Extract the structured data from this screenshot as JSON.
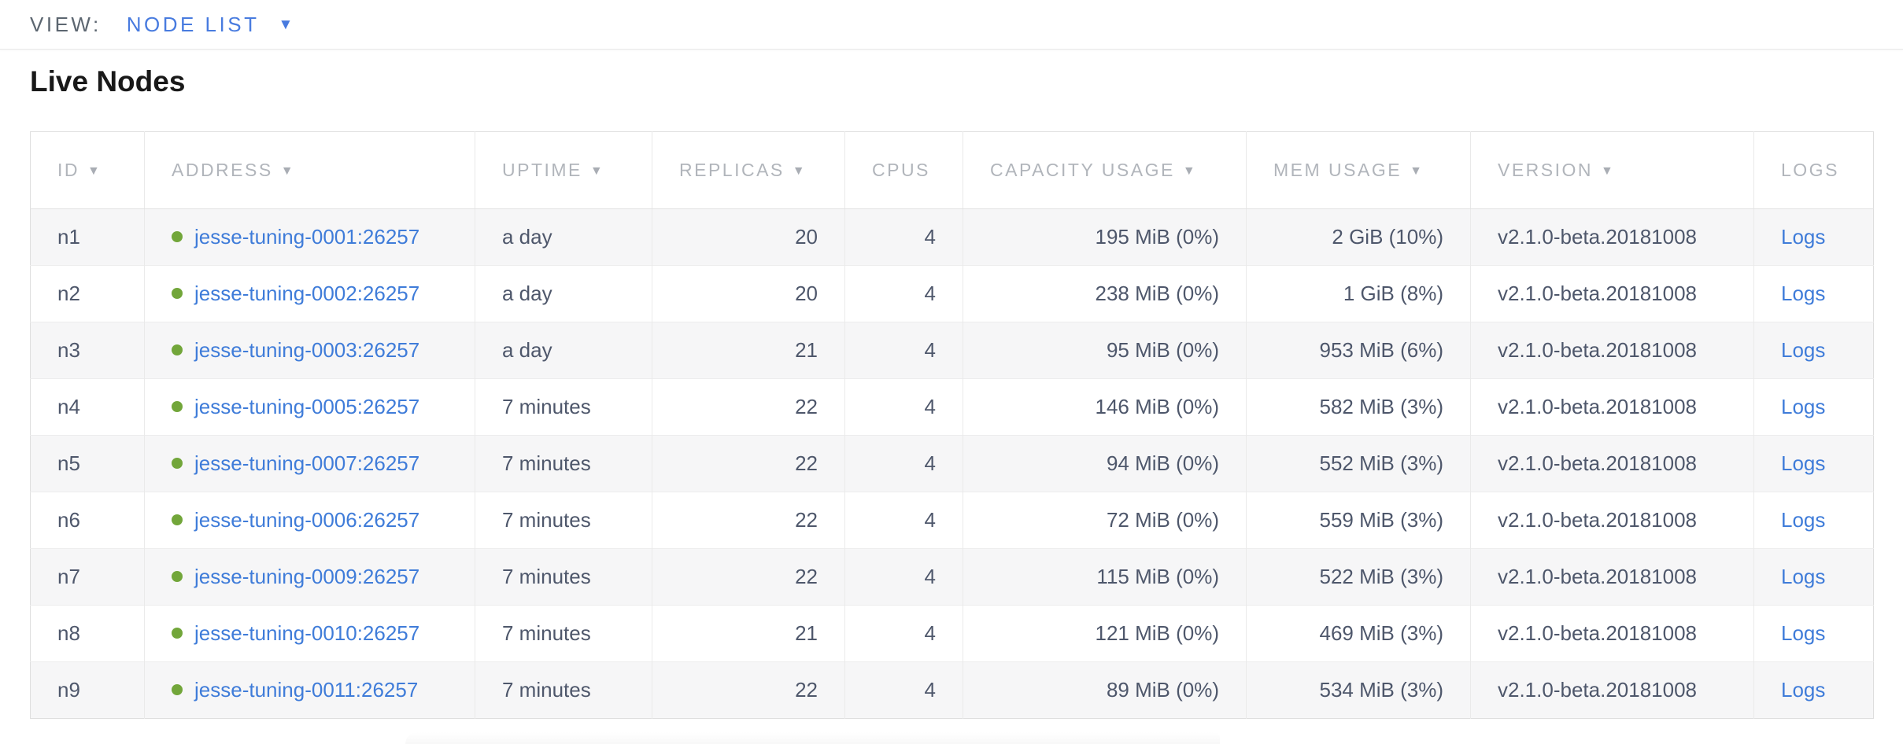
{
  "view_bar": {
    "label": "VIEW:",
    "selected_view": "NODE LIST"
  },
  "page": {
    "title": "Live Nodes"
  },
  "icons": {
    "sort_indicator": "▼",
    "dropdown_caret": "▼"
  },
  "colors": {
    "accent_blue": "#487bdf",
    "link_blue": "#3f7cd9",
    "live_dot_green": "#72a63a",
    "row_stripe": "#f6f6f7",
    "header_text": "#b1b5bb",
    "cell_text": "#4e576b"
  },
  "table": {
    "columns": [
      {
        "key": "id",
        "label": "ID",
        "sortable": true,
        "align": "left"
      },
      {
        "key": "address",
        "label": "ADDRESS",
        "sortable": true,
        "align": "left"
      },
      {
        "key": "uptime",
        "label": "UPTIME",
        "sortable": true,
        "align": "left"
      },
      {
        "key": "replicas",
        "label": "REPLICAS",
        "sortable": true,
        "align": "right"
      },
      {
        "key": "cpus",
        "label": "CPUS",
        "sortable": false,
        "align": "right"
      },
      {
        "key": "capacity",
        "label": "CAPACITY USAGE",
        "sortable": true,
        "align": "right"
      },
      {
        "key": "mem",
        "label": "MEM USAGE",
        "sortable": true,
        "align": "right"
      },
      {
        "key": "version",
        "label": "VERSION",
        "sortable": true,
        "align": "left"
      },
      {
        "key": "logs",
        "label": "LOGS",
        "sortable": false,
        "align": "left"
      }
    ],
    "rows": [
      {
        "id": "n1",
        "address": "jesse-tuning-0001:26257",
        "uptime": "a day",
        "replicas": "20",
        "cpus": "4",
        "capacity": "195 MiB (0%)",
        "mem": "2 GiB (10%)",
        "version": "v2.1.0-beta.20181008",
        "logs": "Logs"
      },
      {
        "id": "n2",
        "address": "jesse-tuning-0002:26257",
        "uptime": "a day",
        "replicas": "20",
        "cpus": "4",
        "capacity": "238 MiB (0%)",
        "mem": "1 GiB (8%)",
        "version": "v2.1.0-beta.20181008",
        "logs": "Logs"
      },
      {
        "id": "n3",
        "address": "jesse-tuning-0003:26257",
        "uptime": "a day",
        "replicas": "21",
        "cpus": "4",
        "capacity": "95 MiB (0%)",
        "mem": "953 MiB (6%)",
        "version": "v2.1.0-beta.20181008",
        "logs": "Logs"
      },
      {
        "id": "n4",
        "address": "jesse-tuning-0005:26257",
        "uptime": "7 minutes",
        "replicas": "22",
        "cpus": "4",
        "capacity": "146 MiB (0%)",
        "mem": "582 MiB (3%)",
        "version": "v2.1.0-beta.20181008",
        "logs": "Logs"
      },
      {
        "id": "n5",
        "address": "jesse-tuning-0007:26257",
        "uptime": "7 minutes",
        "replicas": "22",
        "cpus": "4",
        "capacity": "94 MiB (0%)",
        "mem": "552 MiB (3%)",
        "version": "v2.1.0-beta.20181008",
        "logs": "Logs"
      },
      {
        "id": "n6",
        "address": "jesse-tuning-0006:26257",
        "uptime": "7 minutes",
        "replicas": "22",
        "cpus": "4",
        "capacity": "72 MiB (0%)",
        "mem": "559 MiB (3%)",
        "version": "v2.1.0-beta.20181008",
        "logs": "Logs"
      },
      {
        "id": "n7",
        "address": "jesse-tuning-0009:26257",
        "uptime": "7 minutes",
        "replicas": "22",
        "cpus": "4",
        "capacity": "115 MiB (0%)",
        "mem": "522 MiB (3%)",
        "version": "v2.1.0-beta.20181008",
        "logs": "Logs"
      },
      {
        "id": "n8",
        "address": "jesse-tuning-0010:26257",
        "uptime": "7 minutes",
        "replicas": "21",
        "cpus": "4",
        "capacity": "121 MiB (0%)",
        "mem": "469 MiB (3%)",
        "version": "v2.1.0-beta.20181008",
        "logs": "Logs"
      },
      {
        "id": "n9",
        "address": "jesse-tuning-0011:26257",
        "uptime": "7 minutes",
        "replicas": "22",
        "cpus": "4",
        "capacity": "89 MiB (0%)",
        "mem": "534 MiB (3%)",
        "version": "v2.1.0-beta.20181008",
        "logs": "Logs"
      }
    ]
  }
}
